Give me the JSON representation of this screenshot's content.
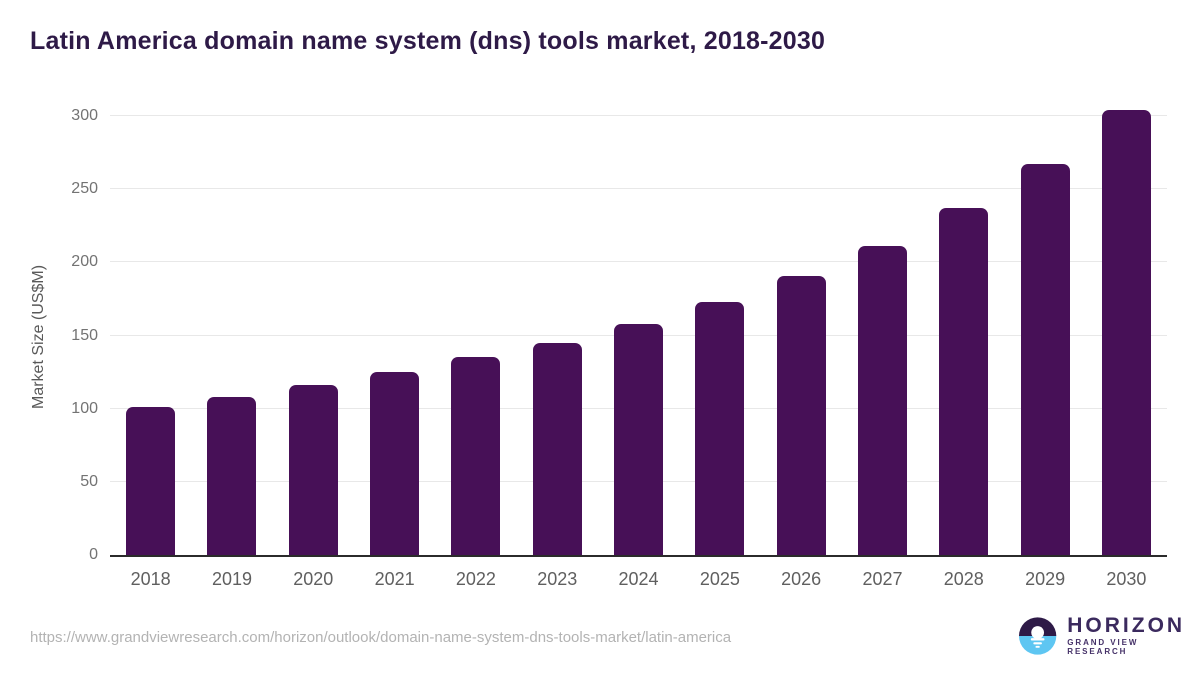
{
  "title": "Latin America domain name system (dns) tools market, 2018-2030",
  "chart_data": {
    "type": "bar",
    "categories": [
      "2018",
      "2019",
      "2020",
      "2021",
      "2022",
      "2023",
      "2024",
      "2025",
      "2026",
      "2027",
      "2028",
      "2029",
      "2030"
    ],
    "values": [
      101,
      108,
      116,
      125,
      135,
      145,
      158,
      173,
      191,
      211,
      237,
      267,
      304
    ],
    "title": "Latin America domain name system (dns) tools market, 2018-2030",
    "xlabel": "",
    "ylabel": "Market Size (US$M)",
    "ylim": [
      0,
      300
    ],
    "yticks": [
      0,
      50,
      100,
      150,
      200,
      250,
      300
    ],
    "grid": true,
    "legend": false,
    "bar_color": "#471057"
  },
  "footer": {
    "source_url": "https://www.grandviewresearch.com/horizon/outlook/domain-name-system-dns-tools-market/latin-america"
  },
  "logo": {
    "name": "HORIZON",
    "subtitle": "GRAND VIEW RESEARCH"
  },
  "colors": {
    "title_text": "#2e1a47",
    "bar": "#471057",
    "gridline": "#e8e8e8",
    "axis_line": "#2b2b2b",
    "tick_text": "#737373",
    "url_text": "#b3b3b3",
    "logo_purple": "#2e1a47",
    "logo_blue": "#5ec6f2"
  }
}
